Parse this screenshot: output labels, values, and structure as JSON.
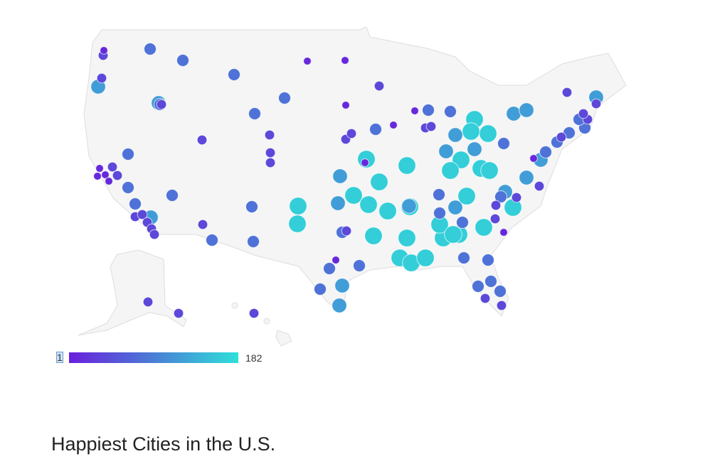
{
  "title": "Happiest Cities in the U.S.",
  "legend": {
    "min_label": "1",
    "max_label": "182",
    "min": 1,
    "max": 182,
    "colors": [
      "#6a1fdc",
      "#4a7ed6",
      "#2ee0d9"
    ]
  },
  "map": {
    "land_color": "#f5f5f5",
    "border_color": "#dddddd"
  }
}
